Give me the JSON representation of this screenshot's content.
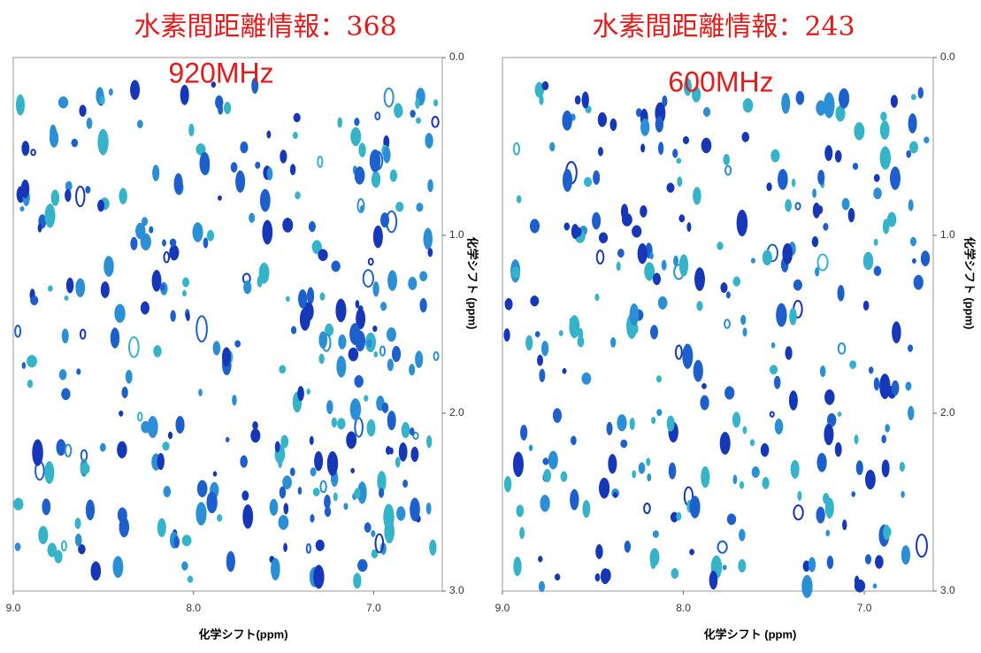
{
  "panels": [
    {
      "title": "水素間距離情報：368",
      "field": "920MHz",
      "x_ticks": [
        "9.0",
        "8.0",
        "7.0"
      ],
      "y_ticks": [
        "0.0",
        "1.0",
        "2.0",
        "3.0"
      ],
      "x_label": "化学シフト(ppm)",
      "y_label": "化学シフト (ppm)"
    },
    {
      "title": "水素間距離情報：243",
      "field": "600MHz",
      "x_ticks": [
        "9.0",
        "8.0",
        "7.0"
      ],
      "y_ticks": [
        "0.0",
        "1.0",
        "2.0",
        "3.0"
      ],
      "x_label": "化学シフト (ppm)",
      "y_label": "化学シフト (ppm)"
    }
  ]
}
